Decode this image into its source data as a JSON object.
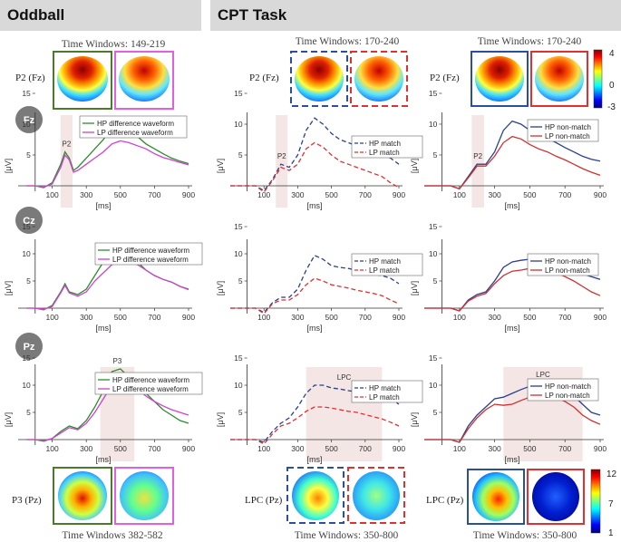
{
  "headers": {
    "oddball": "Oddball",
    "cpt": "CPT Task"
  },
  "electrodes": [
    "Fz",
    "Cz",
    "Pz"
  ],
  "time_windows": {
    "oddball_p2": "Time Windows: 149-219",
    "cpt_match_p2": "Time Windows: 170-240",
    "cpt_nonmatch_p2": "Time Windows: 170-240",
    "oddball_p3": "Time Windows 382-582",
    "cpt_match_lpc": "Time Windows: 350-800",
    "cpt_nonmatch_lpc": "Time Windows: 350-800"
  },
  "map_labels": {
    "p2": "P2 (Fz)",
    "p3": "P3 (Pz)",
    "lpc": "LPC (Pz)"
  },
  "colorbar_top": {
    "ticks": [
      "4",
      "0",
      "-3"
    ]
  },
  "colorbar_bottom": {
    "ticks": [
      "12",
      "7",
      "1"
    ]
  },
  "chart_data": [
    {
      "type": "line",
      "panel": "oddball",
      "electrode": "Fz",
      "component": "P2",
      "window": [
        149,
        219
      ],
      "ylabel": "[μV]",
      "xlabel": "[ms]",
      "x_ticks": [
        100,
        300,
        500,
        700,
        900
      ],
      "y_ticks": [
        5,
        10,
        15
      ],
      "ylim": [
        -2,
        16
      ],
      "series": [
        {
          "name": "HP difference waveform",
          "color": "#2e8b2e",
          "dash": false,
          "x": [
            -50,
            0,
            50,
            100,
            150,
            175,
            200,
            225,
            250,
            300,
            350,
            400,
            450,
            500,
            550,
            600,
            650,
            700,
            750,
            800,
            850,
            900
          ],
          "y": [
            0,
            0,
            -0.3,
            0.5,
            3.5,
            5.5,
            4.5,
            2.5,
            3,
            4.5,
            6,
            7.5,
            9.5,
            10.5,
            9.5,
            8,
            6.8,
            6,
            5.2,
            4.5,
            4,
            3.6
          ]
        },
        {
          "name": "LP difference waveform",
          "color": "#d040d0",
          "dash": false,
          "x": [
            -50,
            0,
            50,
            100,
            150,
            175,
            200,
            225,
            250,
            300,
            350,
            400,
            450,
            500,
            550,
            600,
            650,
            700,
            750,
            800,
            850,
            900
          ],
          "y": [
            0,
            0,
            -0.2,
            0.3,
            3,
            5,
            4.2,
            2.2,
            2.5,
            3.5,
            4.5,
            5.5,
            6.8,
            7.3,
            7,
            6.5,
            6,
            5.2,
            4.6,
            4.2,
            3.8,
            3.4
          ]
        }
      ]
    },
    {
      "type": "line",
      "panel": "cpt_match",
      "electrode": "Fz",
      "component": "P2",
      "window": [
        170,
        240
      ],
      "ylabel": "[μV]",
      "xlabel": "[ms]",
      "x_ticks": [
        100,
        300,
        500,
        700,
        900
      ],
      "y_ticks": [
        5,
        10,
        15
      ],
      "ylim": [
        -2,
        16
      ],
      "series": [
        {
          "name": "HP match",
          "color": "#2a3f8f",
          "dash": true,
          "x": [
            -100,
            -50,
            0,
            50,
            100,
            150,
            200,
            250,
            300,
            350,
            400,
            450,
            500,
            550,
            600,
            650,
            700,
            750,
            800,
            850,
            900
          ],
          "y": [
            0,
            0,
            0,
            0,
            -0.8,
            1,
            3.5,
            3,
            5,
            9,
            11,
            10,
            8.5,
            7.5,
            7,
            6.5,
            6,
            5.5,
            5,
            4.5,
            3.5
          ]
        },
        {
          "name": "LP match",
          "color": "#e03030",
          "dash": true,
          "x": [
            -100,
            -50,
            0,
            50,
            100,
            150,
            200,
            250,
            300,
            350,
            400,
            450,
            500,
            550,
            600,
            650,
            700,
            750,
            800,
            850,
            900
          ],
          "y": [
            0,
            0,
            0,
            0,
            -1,
            0.8,
            3,
            2.5,
            3.5,
            6,
            7,
            6.3,
            5,
            4,
            3.5,
            3,
            2.5,
            2,
            1.5,
            0.5,
            -0.3
          ]
        }
      ]
    },
    {
      "type": "line",
      "panel": "cpt_nonmatch",
      "electrode": "Fz",
      "component": "P2",
      "window": [
        170,
        240
      ],
      "ylabel": "[μV]",
      "xlabel": "[ms]",
      "x_ticks": [
        100,
        300,
        500,
        700,
        900
      ],
      "y_ticks": [
        5,
        10,
        15
      ],
      "ylim": [
        -2,
        16
      ],
      "series": [
        {
          "name": "HP non-match",
          "color": "#2a3f8f",
          "dash": false,
          "x": [
            -100,
            -50,
            0,
            50,
            100,
            150,
            200,
            250,
            300,
            350,
            400,
            450,
            500,
            550,
            600,
            650,
            700,
            750,
            800,
            850,
            900
          ],
          "y": [
            0,
            0,
            0,
            0,
            -0.5,
            1.5,
            3.5,
            3.5,
            5.5,
            9,
            10.5,
            10,
            9,
            8.3,
            7.7,
            7,
            6.2,
            5.5,
            4.8,
            4.3,
            4
          ]
        },
        {
          "name": "LP non-match",
          "color": "#d03030",
          "dash": false,
          "x": [
            -100,
            -50,
            0,
            50,
            100,
            150,
            200,
            250,
            300,
            350,
            400,
            450,
            500,
            550,
            600,
            650,
            700,
            750,
            800,
            850,
            900
          ],
          "y": [
            0,
            0,
            0,
            0,
            -0.5,
            1.3,
            3.2,
            3.2,
            4.8,
            7,
            8,
            7.6,
            6.7,
            6,
            5.5,
            4.8,
            4.2,
            3.5,
            2.8,
            2.2,
            1.7
          ]
        }
      ]
    },
    {
      "type": "line",
      "panel": "oddball",
      "electrode": "Cz",
      "ylabel": "[μV]",
      "xlabel": "[ms]",
      "x_ticks": [
        100,
        300,
        500,
        700,
        900
      ],
      "y_ticks": [
        5,
        10,
        15
      ],
      "ylim": [
        -2,
        16
      ],
      "series": [
        {
          "name": "HP difference waveform",
          "color": "#2e8b2e",
          "dash": false,
          "x": [
            -50,
            0,
            50,
            100,
            150,
            175,
            200,
            250,
            300,
            350,
            400,
            450,
            500,
            550,
            600,
            650,
            700,
            750,
            800,
            850,
            900
          ],
          "y": [
            0,
            0,
            -0.3,
            0.5,
            3,
            4.5,
            3,
            2.5,
            3.5,
            6,
            8.5,
            10.5,
            11,
            10,
            8.5,
            7,
            6,
            5.3,
            4.8,
            4,
            3.5
          ]
        },
        {
          "name": "LP difference waveform",
          "color": "#d040d0",
          "dash": false,
          "x": [
            -50,
            0,
            50,
            100,
            150,
            175,
            200,
            250,
            300,
            350,
            400,
            450,
            500,
            550,
            600,
            650,
            700,
            750,
            800,
            850,
            900
          ],
          "y": [
            0,
            0,
            -0.2,
            0.3,
            2.8,
            4.2,
            2.8,
            2.2,
            3,
            5,
            6.5,
            8,
            8.7,
            8.5,
            8,
            7,
            6,
            5.3,
            4.8,
            4,
            3.4
          ]
        }
      ]
    },
    {
      "type": "line",
      "panel": "cpt_match",
      "electrode": "Cz",
      "ylabel": "[μV]",
      "xlabel": "[ms]",
      "x_ticks": [
        100,
        300,
        500,
        700,
        900
      ],
      "y_ticks": [
        5,
        10,
        15
      ],
      "ylim": [
        -2,
        16
      ],
      "series": [
        {
          "name": "HP match",
          "color": "#2a3f8f",
          "dash": true,
          "x": [
            -100,
            -50,
            0,
            50,
            100,
            150,
            200,
            250,
            300,
            350,
            400,
            450,
            500,
            550,
            600,
            650,
            700,
            750,
            800,
            850,
            900
          ],
          "y": [
            0,
            0,
            0,
            0,
            -0.8,
            1,
            2,
            2,
            3.5,
            7,
            9.7,
            9,
            7.8,
            7.5,
            7.3,
            7,
            6.7,
            6.2,
            6,
            5.5,
            4.5
          ]
        },
        {
          "name": "LP match",
          "color": "#e03030",
          "dash": true,
          "x": [
            -100,
            -50,
            0,
            50,
            100,
            150,
            200,
            250,
            300,
            350,
            400,
            450,
            500,
            550,
            600,
            650,
            700,
            750,
            800,
            850,
            900
          ],
          "y": [
            0,
            0,
            0,
            0,
            -1,
            0.8,
            1.5,
            1.5,
            2.5,
            4.3,
            5.5,
            5,
            4.3,
            4,
            3.7,
            3.3,
            3,
            2.7,
            2.3,
            1.5,
            0.8
          ]
        }
      ]
    },
    {
      "type": "line",
      "panel": "cpt_nonmatch",
      "electrode": "Cz",
      "ylabel": "[μV]",
      "xlabel": "[ms]",
      "x_ticks": [
        100,
        300,
        500,
        700,
        900
      ],
      "y_ticks": [
        5,
        10,
        15
      ],
      "ylim": [
        -2,
        16
      ],
      "series": [
        {
          "name": "HP non-match",
          "color": "#2a3f8f",
          "dash": false,
          "x": [
            -100,
            -50,
            0,
            50,
            100,
            150,
            200,
            250,
            300,
            350,
            400,
            450,
            500,
            550,
            600,
            650,
            700,
            750,
            800,
            850,
            900
          ],
          "y": [
            0,
            0,
            0,
            0,
            -0.5,
            1.5,
            2.5,
            3,
            5,
            7.5,
            8.5,
            8.8,
            9,
            9,
            8.8,
            8.3,
            7.5,
            7,
            6.3,
            5.8,
            5.3
          ]
        },
        {
          "name": "LP non-match",
          "color": "#d03030",
          "dash": false,
          "x": [
            -100,
            -50,
            0,
            50,
            100,
            150,
            200,
            250,
            300,
            350,
            400,
            450,
            500,
            550,
            600,
            650,
            700,
            750,
            800,
            850,
            900
          ],
          "y": [
            0,
            0,
            0,
            0,
            -0.5,
            1.3,
            2.2,
            2.7,
            4.5,
            6,
            6.8,
            7,
            7.3,
            7.3,
            7,
            6.5,
            5.8,
            5,
            4,
            3,
            2.3
          ]
        }
      ]
    },
    {
      "type": "line",
      "panel": "oddball",
      "electrode": "Pz",
      "component": "P3",
      "window": [
        382,
        582
      ],
      "ylabel": "[μV]",
      "xlabel": "[ms]",
      "x_ticks": [
        100,
        300,
        500,
        700,
        900
      ],
      "y_ticks": [
        5,
        10,
        15
      ],
      "ylim": [
        -2,
        16
      ],
      "series": [
        {
          "name": "HP difference waveform",
          "color": "#2e8b2e",
          "dash": false,
          "x": [
            -50,
            0,
            50,
            100,
            150,
            200,
            250,
            300,
            350,
            400,
            450,
            500,
            550,
            600,
            650,
            700,
            750,
            800,
            850,
            900
          ],
          "y": [
            0,
            0,
            -0.3,
            0.2,
            1.5,
            2.5,
            2,
            3.5,
            6,
            9,
            12.5,
            13,
            11.5,
            10,
            8.5,
            7,
            5.5,
            4.5,
            3.5,
            3
          ]
        },
        {
          "name": "LP difference waveform",
          "color": "#d040d0",
          "dash": false,
          "x": [
            -50,
            0,
            50,
            100,
            150,
            200,
            250,
            300,
            350,
            400,
            450,
            500,
            550,
            600,
            650,
            700,
            750,
            800,
            850,
            900
          ],
          "y": [
            0,
            0,
            -0.2,
            0.2,
            1.2,
            2.2,
            1.8,
            3,
            5,
            7.5,
            10,
            11,
            10.5,
            9.3,
            8,
            7,
            6.2,
            5.5,
            5,
            4.5
          ]
        }
      ]
    },
    {
      "type": "line",
      "panel": "cpt_match",
      "electrode": "Pz",
      "component": "LPC",
      "window": [
        350,
        800
      ],
      "ylabel": "[μV]",
      "xlabel": "[ms]",
      "x_ticks": [
        100,
        300,
        500,
        700,
        900
      ],
      "y_ticks": [
        5,
        10,
        15
      ],
      "ylim": [
        -2,
        16
      ],
      "series": [
        {
          "name": "HP match",
          "color": "#2a3f8f",
          "dash": true,
          "x": [
            -100,
            -50,
            0,
            50,
            100,
            150,
            200,
            250,
            300,
            350,
            400,
            450,
            500,
            550,
            600,
            650,
            700,
            750,
            800,
            850,
            900
          ],
          "y": [
            0,
            0,
            0,
            0,
            -0.5,
            1.5,
            3,
            4,
            6,
            8.5,
            10,
            10,
            9.5,
            9.3,
            9,
            8.8,
            8.5,
            8.2,
            8,
            7.5,
            6.5
          ]
        },
        {
          "name": "LP match",
          "color": "#e03030",
          "dash": true,
          "x": [
            -100,
            -50,
            0,
            50,
            100,
            150,
            200,
            250,
            300,
            350,
            400,
            450,
            500,
            550,
            600,
            650,
            700,
            750,
            800,
            850,
            900
          ],
          "y": [
            0,
            0,
            0,
            0,
            -0.8,
            1,
            2.5,
            3,
            4,
            5.2,
            6,
            6,
            5.8,
            5.5,
            5.2,
            5,
            4.6,
            4.2,
            3.8,
            3.2,
            2.5
          ]
        }
      ]
    },
    {
      "type": "line",
      "panel": "cpt_nonmatch",
      "electrode": "Pz",
      "component": "LPC",
      "window": [
        350,
        800
      ],
      "ylabel": "[μV]",
      "xlabel": "[ms]",
      "x_ticks": [
        100,
        300,
        500,
        700,
        900
      ],
      "y_ticks": [
        5,
        10,
        15
      ],
      "ylim": [
        -2,
        16
      ],
      "series": [
        {
          "name": "HP non-match",
          "color": "#2a3f8f",
          "dash": false,
          "x": [
            -100,
            -50,
            0,
            50,
            100,
            150,
            200,
            250,
            300,
            350,
            400,
            450,
            500,
            550,
            600,
            650,
            700,
            750,
            800,
            850,
            900
          ],
          "y": [
            0,
            0,
            0,
            0,
            -0.5,
            2.5,
            4.5,
            6,
            7.5,
            7.8,
            8.5,
            9.2,
            9.8,
            10.3,
            10.5,
            10,
            9,
            8,
            6.5,
            5,
            4.5
          ]
        },
        {
          "name": "LP non-match",
          "color": "#d03030",
          "dash": false,
          "x": [
            -100,
            -50,
            0,
            50,
            100,
            150,
            200,
            250,
            300,
            350,
            400,
            450,
            500,
            550,
            600,
            650,
            700,
            750,
            800,
            850,
            900
          ],
          "y": [
            0,
            0,
            0,
            0,
            -0.5,
            2,
            4,
            5.5,
            6.5,
            6.3,
            6.5,
            7.2,
            7.8,
            8.2,
            8.3,
            7.8,
            7,
            6,
            4.5,
            3.5,
            2.8
          ]
        }
      ]
    }
  ]
}
